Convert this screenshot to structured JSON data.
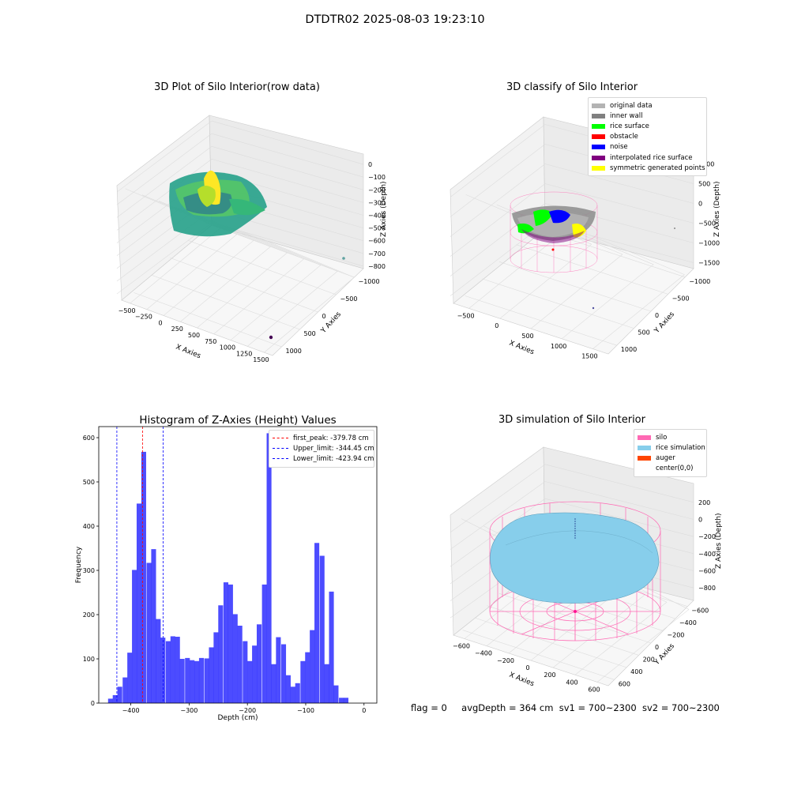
{
  "figure": {
    "suptitle": "DTDTR02 2025-08-03 19:23:10",
    "status": {
      "flag": "flag = 0",
      "avg_depth": "avgDepth = 364 cm",
      "sv1": "sv1 = 700~2300",
      "sv2": "sv2 = 700~2300"
    }
  },
  "chart_data": [
    {
      "type": "scatter",
      "title": "3D Plot of Silo Interior(row data)",
      "xlabel": "X Axies",
      "ylabel": "Y Axies",
      "zlabel": "Z Axies (Depth)",
      "x_ticks": [
        "−500",
        "−250",
        "0",
        "250",
        "500",
        "750",
        "1000",
        "1250",
        "1500"
      ],
      "y_ticks": [
        "−1000",
        "−500",
        "0",
        "500",
        "1000"
      ],
      "z_ticks": [
        "0",
        "−100",
        "−200",
        "−300",
        "−400",
        "−500",
        "−600",
        "−700",
        "−800"
      ],
      "colormap": "viridis",
      "outliers": [
        {
          "x": 1500,
          "y": -1000,
          "z": -850,
          "color": "#440154"
        },
        {
          "x": 1200,
          "y": 1000,
          "z": -800,
          "color": "#5fa2a0"
        }
      ]
    },
    {
      "type": "scatter",
      "title": "3D classify of Silo Interior",
      "xlabel": "X Axies",
      "ylabel": "Y Axies",
      "zlabel": "Z Axies (Depth)",
      "x_ticks": [
        "−500",
        "0",
        "500",
        "1000",
        "1500"
      ],
      "y_ticks": [
        "−1000",
        "−500",
        "0",
        "500",
        "1000"
      ],
      "z_ticks": [
        "1000",
        "500",
        "0",
        "−500",
        "−1000",
        "−1500"
      ],
      "legend": [
        {
          "label": "original data",
          "color": "#b3b3b3"
        },
        {
          "label": "inner wall",
          "color": "#808080"
        },
        {
          "label": "rice surface",
          "color": "#00ff00"
        },
        {
          "label": "obstacle",
          "color": "#ff0000"
        },
        {
          "label": "noise",
          "color": "#0000ff"
        },
        {
          "label": "interpolated rice surface",
          "color": "#800080"
        },
        {
          "label": "symmetric generated points",
          "color": "#ffff00"
        }
      ]
    },
    {
      "type": "bar",
      "title": "Histogram of Z-Axies (Height) Values",
      "xlabel": "Depth (cm)",
      "ylabel": "Frequency",
      "xlim": [
        -455,
        22
      ],
      "ylim": [
        0,
        625
      ],
      "bin_width": 8.25,
      "x_ticks": [
        -400,
        -300,
        -200,
        -100,
        0
      ],
      "x_tick_labels": [
        "−400",
        "−300",
        "−200",
        "−100",
        "0"
      ],
      "y_ticks": [
        0,
        100,
        200,
        300,
        400,
        500,
        600
      ],
      "color": "#0000ff",
      "bins": [
        {
          "left": -439,
          "count": 10
        },
        {
          "left": -431,
          "count": 18
        },
        {
          "left": -423,
          "count": 37
        },
        {
          "left": -414,
          "count": 58
        },
        {
          "left": -406,
          "count": 114
        },
        {
          "left": -398,
          "count": 301
        },
        {
          "left": -390,
          "count": 451
        },
        {
          "left": -382,
          "count": 568
        },
        {
          "left": -373,
          "count": 317
        },
        {
          "left": -365,
          "count": 348
        },
        {
          "left": -357,
          "count": 190
        },
        {
          "left": -349,
          "count": 148
        },
        {
          "left": -340,
          "count": 140
        },
        {
          "left": -332,
          "count": 151
        },
        {
          "left": -324,
          "count": 150
        },
        {
          "left": -316,
          "count": 100
        },
        {
          "left": -307,
          "count": 102
        },
        {
          "left": -299,
          "count": 97
        },
        {
          "left": -291,
          "count": 95
        },
        {
          "left": -283,
          "count": 102
        },
        {
          "left": -274,
          "count": 101
        },
        {
          "left": -266,
          "count": 126
        },
        {
          "left": -258,
          "count": 160
        },
        {
          "left": -250,
          "count": 221
        },
        {
          "left": -241,
          "count": 273
        },
        {
          "left": -233,
          "count": 268
        },
        {
          "left": -225,
          "count": 201
        },
        {
          "left": -217,
          "count": 175
        },
        {
          "left": -208,
          "count": 140
        },
        {
          "left": -200,
          "count": 95
        },
        {
          "left": -192,
          "count": 130
        },
        {
          "left": -184,
          "count": 178
        },
        {
          "left": -175,
          "count": 268
        },
        {
          "left": -167,
          "count": 610
        },
        {
          "left": -159,
          "count": 88
        },
        {
          "left": -151,
          "count": 149
        },
        {
          "left": -142,
          "count": 133
        },
        {
          "left": -134,
          "count": 63
        },
        {
          "left": -126,
          "count": 37
        },
        {
          "left": -118,
          "count": 45
        },
        {
          "left": -109,
          "count": 95
        },
        {
          "left": -101,
          "count": 115
        },
        {
          "left": -93,
          "count": 165
        },
        {
          "left": -85,
          "count": 362
        },
        {
          "left": -76,
          "count": 333
        },
        {
          "left": -68,
          "count": 88
        },
        {
          "left": -60,
          "count": 252
        },
        {
          "left": -52,
          "count": 40
        },
        {
          "left": -43,
          "count": 12
        },
        {
          "left": -35,
          "count": 12
        }
      ],
      "lines": [
        {
          "label": "first_peak: -379.78 cm",
          "x": -379.78,
          "color": "#ff0000"
        },
        {
          "label": "Upper_limit: -344.45 cm",
          "x": -344.45,
          "color": "#0000ff"
        },
        {
          "label": "Lower_limit: -423.94 cm",
          "x": -423.94,
          "color": "#0000ff"
        }
      ]
    },
    {
      "type": "scatter",
      "title": "3D simulation of Silo Interior",
      "xlabel": "X Axies",
      "ylabel": "Y Axies",
      "zlabel": "Z Axies (Depth)",
      "x_ticks": [
        "−600",
        "−400",
        "−200",
        "0",
        "200",
        "400",
        "600"
      ],
      "y_ticks": [
        "−600",
        "−400",
        "−200",
        "0",
        "200",
        "400",
        "600"
      ],
      "z_ticks": [
        "200",
        "0",
        "−200",
        "−400",
        "−600",
        "−800"
      ],
      "legend": [
        {
          "label": "silo",
          "color": "#ff69b4"
        },
        {
          "label": "rice simulation",
          "color": "#87ceeb"
        },
        {
          "label": "auger",
          "color": "#ff4500"
        },
        {
          "label": "center(0,0)",
          "color": "#ffffff"
        }
      ]
    }
  ]
}
